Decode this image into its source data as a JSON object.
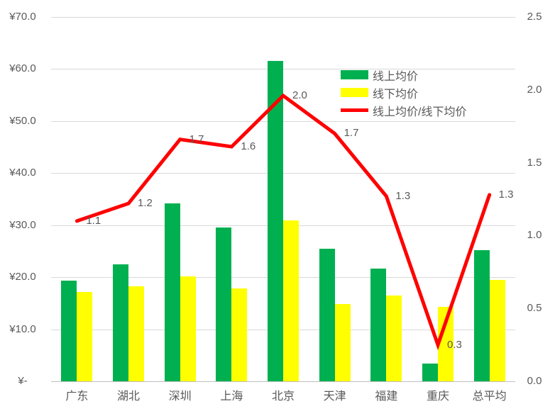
{
  "chart_data": {
    "type": "bar",
    "subtype": "grouped-bars-with-line",
    "categories": [
      "广东",
      "湖北",
      "深圳",
      "上海",
      "北京",
      "天津",
      "福建",
      "重庆",
      "总平均"
    ],
    "series": [
      {
        "name": "线上均价",
        "type": "bar",
        "color": "#00b050",
        "values": [
          19.3,
          22.5,
          34.2,
          29.5,
          61.5,
          25.4,
          21.6,
          3.4,
          25.2
        ]
      },
      {
        "name": "线下均价",
        "type": "bar",
        "color": "#ffff00",
        "values": [
          17.1,
          18.3,
          20.2,
          17.9,
          30.9,
          14.8,
          16.5,
          14.3,
          19.5
        ]
      },
      {
        "name": "线上均价/线下均价",
        "type": "line",
        "axis": "right",
        "color": "#ff0000",
        "values": [
          1.1,
          1.22,
          1.66,
          1.61,
          1.96,
          1.7,
          1.27,
          0.25,
          1.28
        ],
        "point_labels": [
          "1.1",
          "1.2",
          "1.7",
          "1.6",
          "2.0",
          "1.7",
          "1.3",
          "0.3",
          "1.3"
        ]
      }
    ],
    "left_axis": {
      "ticks": [
        "¥70.0",
        "¥60.0",
        "¥50.0",
        "¥40.0",
        "¥30.0",
        "¥20.0",
        "¥10.0",
        "¥-"
      ],
      "min": 0,
      "max": 70
    },
    "right_axis": {
      "ticks": [
        "2.5",
        "2.0",
        "1.5",
        "1.0",
        "0.5",
        "0.0"
      ],
      "min": 0,
      "max": 2.5
    },
    "grid": true,
    "legend_position": "inside-top-right",
    "title": ""
  },
  "colors": {
    "gridline": "#d9d9d9",
    "axis_line": "#bfbfbf",
    "text": "#595959",
    "background": "#ffffff"
  }
}
